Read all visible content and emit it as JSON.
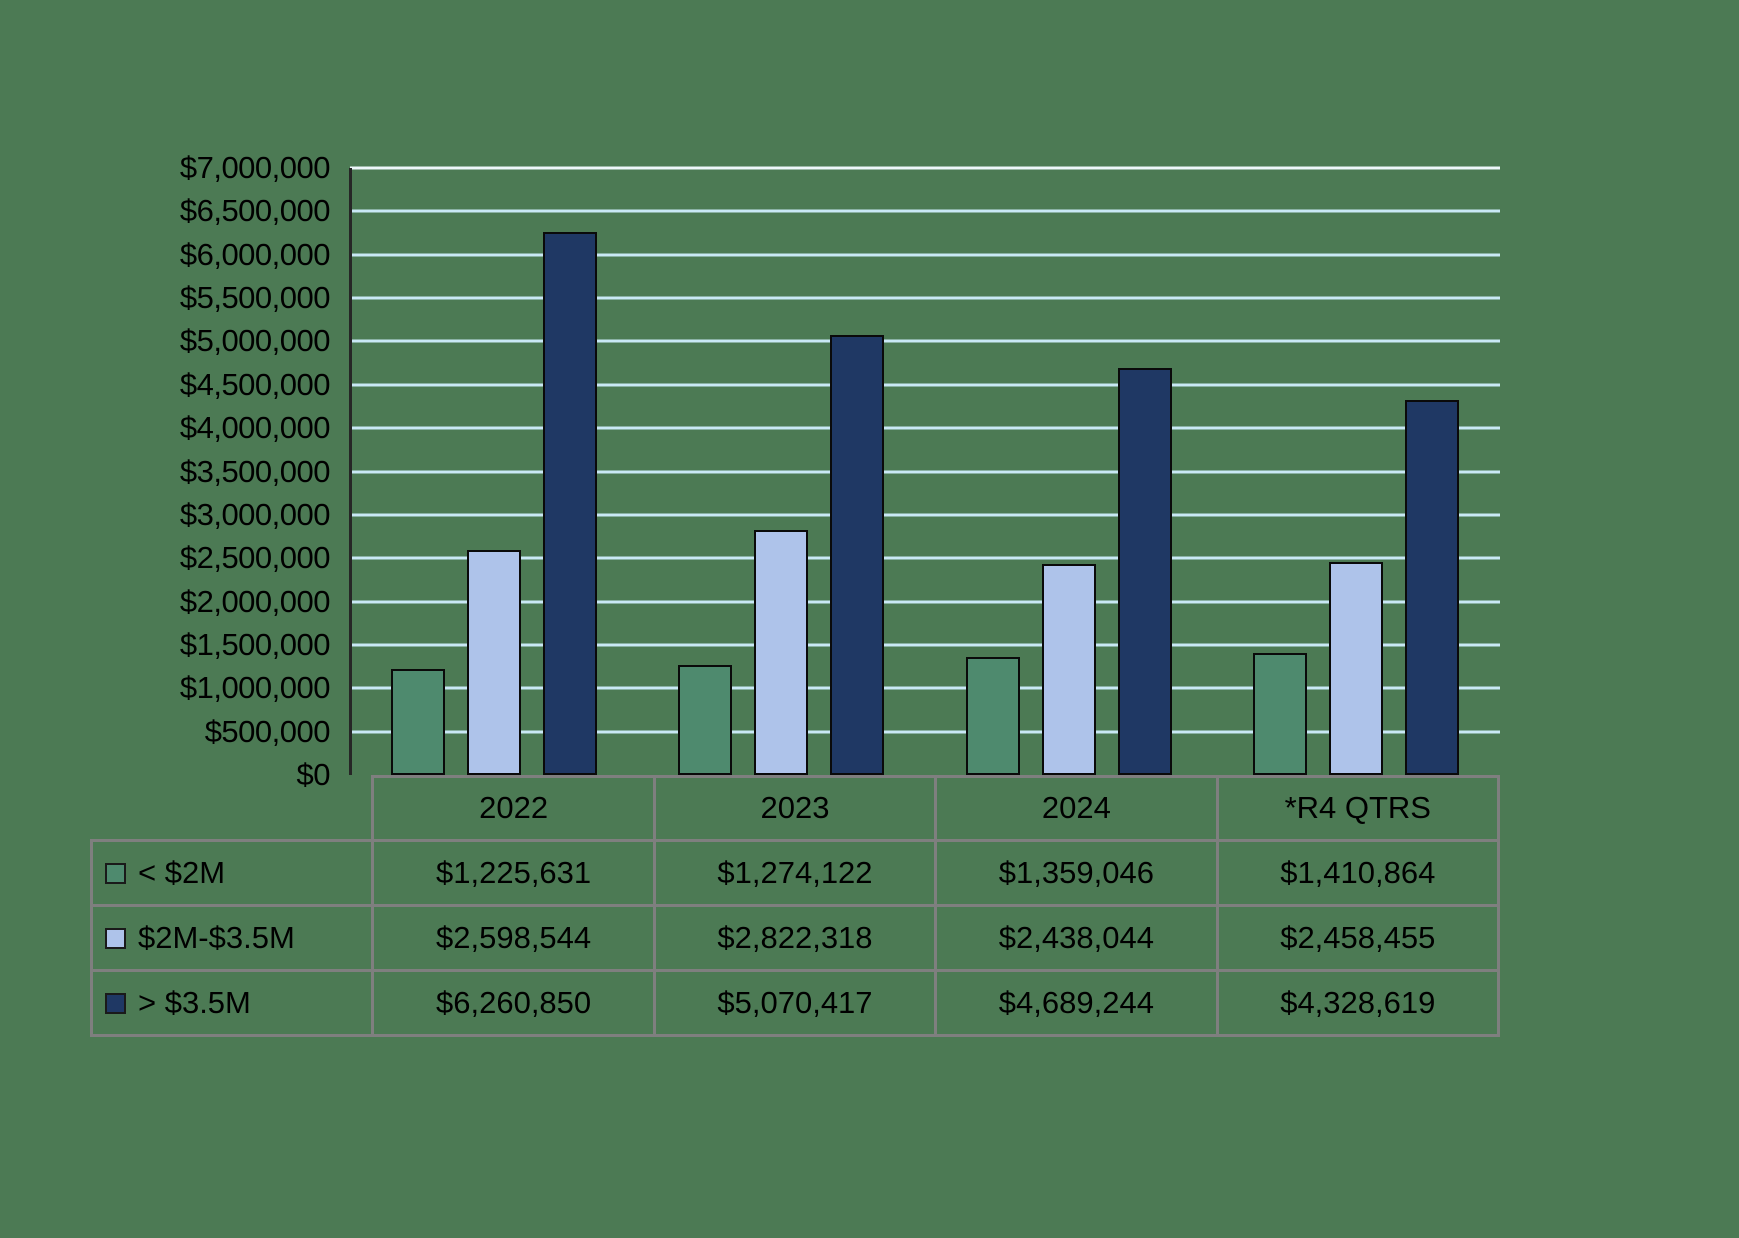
{
  "chart_data": {
    "type": "bar",
    "title": "",
    "xlabel": "",
    "ylabel": "",
    "grid": true,
    "legend_position": "table-left",
    "ylim": [
      0,
      7000000
    ],
    "ytick_step": 500000,
    "ytick_labels": [
      "$0",
      "$500,000",
      "$1,000,000",
      "$1,500,000",
      "$2,000,000",
      "$2,500,000",
      "$3,000,000",
      "$3,500,000",
      "$4,000,000",
      "$4,500,000",
      "$5,000,000",
      "$5,500,000",
      "$6,000,000",
      "$6,500,000",
      "$7,000,000"
    ],
    "categories": [
      "2022",
      "2023",
      "2024",
      "*R4 QTRS"
    ],
    "series": [
      {
        "name": "< $2M",
        "color": "#4E8A6E",
        "values": [
          1225631,
          1274122,
          1359046,
          1410864
        ],
        "display": [
          "$1,225,631",
          "$1,274,122",
          "$1,359,046",
          "$1,410,864"
        ]
      },
      {
        "name": "$2M-$3.5M",
        "color": "#AEC3EA",
        "values": [
          2598544,
          2822318,
          2438044,
          2458455
        ],
        "display": [
          "$2,598,544",
          "$2,822,318",
          "$2,438,044",
          "$2,458,455"
        ]
      },
      {
        "name": "> $3.5M",
        "color": "#1F3864",
        "values": [
          6260850,
          5070417,
          4689244,
          4328619
        ],
        "display": [
          "$6,260,850",
          "$5,070,417",
          "$4,689,244",
          "$4,328,619"
        ]
      }
    ]
  },
  "colors": {
    "background": "#4C7A54",
    "gridline": "#C9E8F5",
    "gridline_top": "#EDF6FA",
    "axis": "#262626",
    "table_border": "#7f7f7f",
    "bar_outline": "#0a0a0a",
    "text": "#000000"
  }
}
